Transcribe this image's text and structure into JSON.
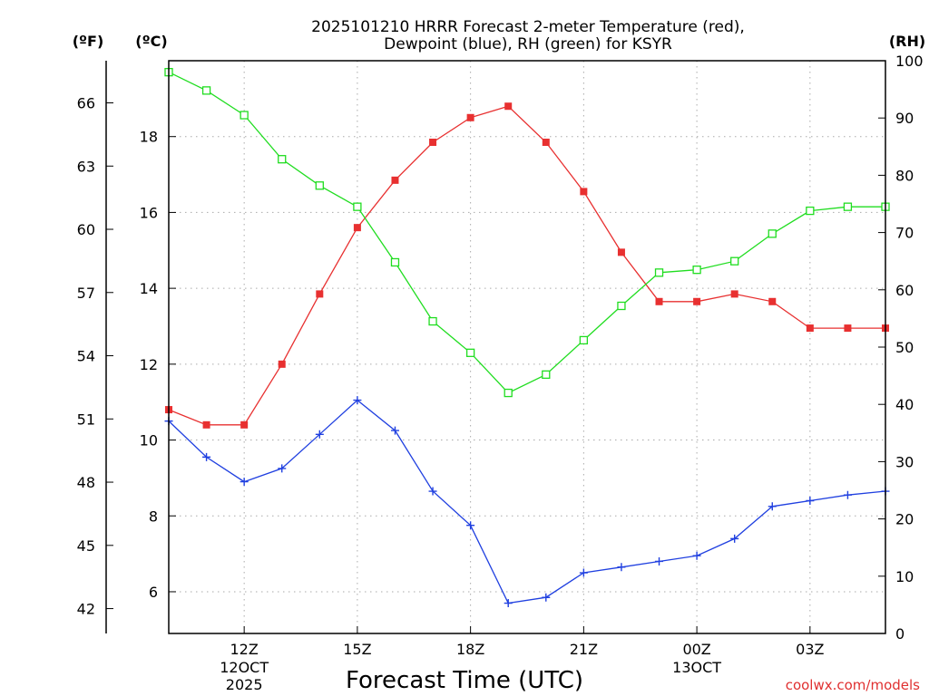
{
  "chart_data": {
    "type": "line",
    "title_line1": "2025101210 HRRR Forecast 2-meter Temperature (red),",
    "title_line2": "Dewpoint (blue), RH (green) for KSYR",
    "xlabel": "Forecast Time (UTC)",
    "units": {
      "fahrenheit": "(ºF)",
      "celsius": "(ºC)",
      "rh": "(RH)"
    },
    "credit": "coolwx.com/models",
    "x_hours": [
      9,
      10,
      11,
      12,
      13,
      14,
      15,
      16,
      17,
      18,
      19,
      20,
      21,
      22,
      23,
      24,
      25,
      26,
      27,
      28
    ],
    "xlim": [
      9,
      28
    ],
    "x_ticks": [
      {
        "hour": 11,
        "label": "12Z",
        "sub1": "12OCT",
        "sub2": "2025"
      },
      {
        "hour": 14,
        "label": "15Z",
        "sub1": "",
        "sub2": ""
      },
      {
        "hour": 17,
        "label": "18Z",
        "sub1": "",
        "sub2": ""
      },
      {
        "hour": 20,
        "label": "21Z",
        "sub1": "",
        "sub2": ""
      },
      {
        "hour": 23,
        "label": "00Z",
        "sub1": "13OCT",
        "sub2": ""
      },
      {
        "hour": 26,
        "label": "03Z",
        "sub1": "",
        "sub2": ""
      }
    ],
    "left_axis_celsius": {
      "ylim": [
        4.9,
        20.0
      ],
      "ticks": [
        "6",
        "8",
        "10",
        "12",
        "14",
        "16",
        "18"
      ]
    },
    "far_left_axis_fahrenheit": {
      "ticks": [
        "42",
        "45",
        "48",
        "51",
        "54",
        "57",
        "60",
        "63",
        "66"
      ]
    },
    "right_axis_rh": {
      "ylim": [
        0,
        100
      ],
      "ticks": [
        "0",
        "10",
        "20",
        "30",
        "40",
        "50",
        "60",
        "70",
        "80",
        "90",
        "100"
      ]
    },
    "series": [
      {
        "name": "2-meter Temperature",
        "axis": "celsius",
        "color": "#e83030",
        "marker": "filled-square",
        "values": [
          10.8,
          10.4,
          10.4,
          12.0,
          13.85,
          15.6,
          16.85,
          17.85,
          18.5,
          18.8,
          17.85,
          16.55,
          14.95,
          13.65,
          13.65,
          13.85,
          13.65,
          12.95,
          12.95,
          12.95
        ]
      },
      {
        "name": "Dewpoint",
        "axis": "celsius",
        "color": "#2040e0",
        "marker": "plus",
        "values": [
          10.5,
          9.55,
          8.9,
          9.25,
          10.15,
          11.05,
          10.25,
          8.65,
          7.75,
          5.7,
          5.85,
          6.5,
          6.65,
          6.8,
          6.95,
          7.4,
          8.25,
          8.4,
          8.55,
          8.65
        ]
      },
      {
        "name": "RH",
        "axis": "rh",
        "color": "#20dd20",
        "marker": "hollow-square",
        "values": [
          98,
          94.8,
          90.5,
          82.8,
          78.2,
          74.5,
          64.8,
          54.5,
          49.0,
          42.0,
          45.2,
          51.2,
          57.2,
          63.0,
          63.5,
          65.0,
          69.8,
          73.8,
          74.5,
          74.5
        ]
      }
    ]
  }
}
